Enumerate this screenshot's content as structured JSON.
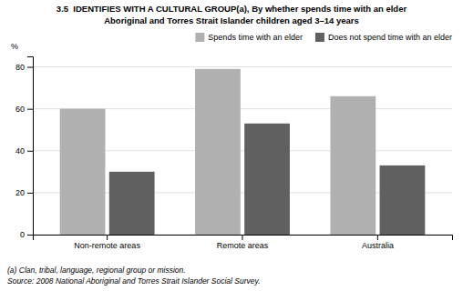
{
  "chart_data": {
    "type": "bar",
    "title": "3.5  IDENTIFIES WITH A CULTURAL GROUP(a), By whether spends time with an elder",
    "subtitle": "Aboriginal and Torres Strait Islander children aged 3–14 years",
    "y_label": "%",
    "categories": [
      "Non-remote areas",
      "Remote areas",
      "Australia"
    ],
    "series": [
      {
        "name": "Spends time with an elder",
        "color": "#b0b0b0",
        "values": [
          60,
          79,
          66
        ]
      },
      {
        "name": "Does not spend time with an elder",
        "color": "#606060",
        "values": [
          30,
          53,
          33
        ]
      }
    ],
    "ylim": [
      0,
      85
    ],
    "yticks": [
      0,
      20,
      40,
      60,
      80
    ],
    "grid": true,
    "legend": "top-right",
    "annotations": [
      "(a) Clan, tribal, language, regional group or mission.",
      "Source: 2008 National Aboriginal and Torres Strait Islander Social Survey."
    ]
  }
}
